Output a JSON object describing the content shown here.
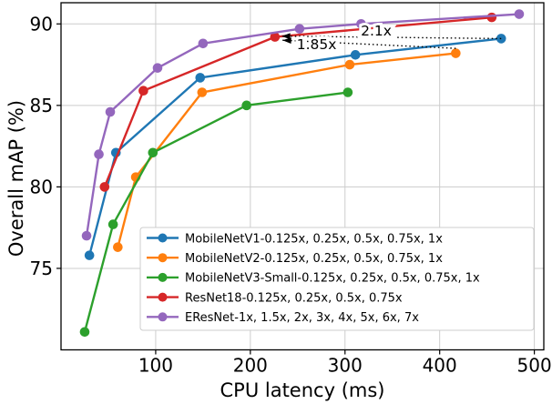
{
  "chart_data": {
    "type": "line",
    "title": "",
    "xlabel": "CPU latency (ms)",
    "ylabel": "Overall mAP (%)",
    "xlim": [
      0,
      510
    ],
    "ylim": [
      70,
      91.3
    ],
    "xticks": [
      100,
      200,
      300,
      400,
      500
    ],
    "yticks": [
      75,
      80,
      85,
      90
    ],
    "grid": true,
    "grid_color": "#cccccc",
    "legend_position": "lower-right-inside",
    "series": [
      {
        "name": "MobileNetV1-0.125x, 0.25x, 0.5x, 0.75x, 1x",
        "color": "#1f77b4",
        "points": [
          [
            30,
            75.8
          ],
          [
            58,
            82.1
          ],
          [
            147,
            86.7
          ],
          [
            311,
            88.1
          ],
          [
            465,
            89.1
          ]
        ]
      },
      {
        "name": "MobileNetV2-0.125x, 0.25x, 0.5x, 0.75x, 1x",
        "color": "#ff7f0e",
        "points": [
          [
            60,
            76.3
          ],
          [
            79,
            80.6
          ],
          [
            149,
            85.8
          ],
          [
            305,
            87.5
          ],
          [
            417,
            88.2
          ]
        ]
      },
      {
        "name": "MobileNetV3-Small-0.125x, 0.25x, 0.5x, 0.75x, 1x",
        "color": "#2ca02c",
        "points": [
          [
            25,
            71.1
          ],
          [
            55,
            77.7
          ],
          [
            97,
            82.1
          ],
          [
            196,
            85.0
          ],
          [
            303,
            85.8
          ]
        ]
      },
      {
        "name": "ResNet18-0.125x, 0.25x, 0.5x, 0.75x",
        "color": "#d62728",
        "points": [
          [
            46,
            80.0
          ],
          [
            87,
            85.9
          ],
          [
            226,
            89.2
          ],
          [
            455,
            90.4
          ]
        ]
      },
      {
        "name": "EResNet-1x, 1.5x, 2x, 3x, 4x, 5x, 6x, 7x",
        "color": "#9467bd",
        "points": [
          [
            27,
            77.0
          ],
          [
            40,
            82.0
          ],
          [
            52,
            84.6
          ],
          [
            102,
            87.3
          ],
          [
            150,
            88.8
          ],
          [
            252,
            89.7
          ],
          [
            317,
            90.0
          ],
          [
            484,
            90.6
          ]
        ]
      }
    ],
    "annotations": [
      {
        "label": "2.1x",
        "from": [
          465,
          89.1
        ],
        "to": [
          233,
          89.25
        ],
        "label_x": 333,
        "label_y": 89.6
      },
      {
        "label": "1.85x",
        "from": [
          417,
          88.5
        ],
        "to": [
          234,
          89.0
        ],
        "label_x": 270,
        "label_y": 88.75
      }
    ]
  }
}
